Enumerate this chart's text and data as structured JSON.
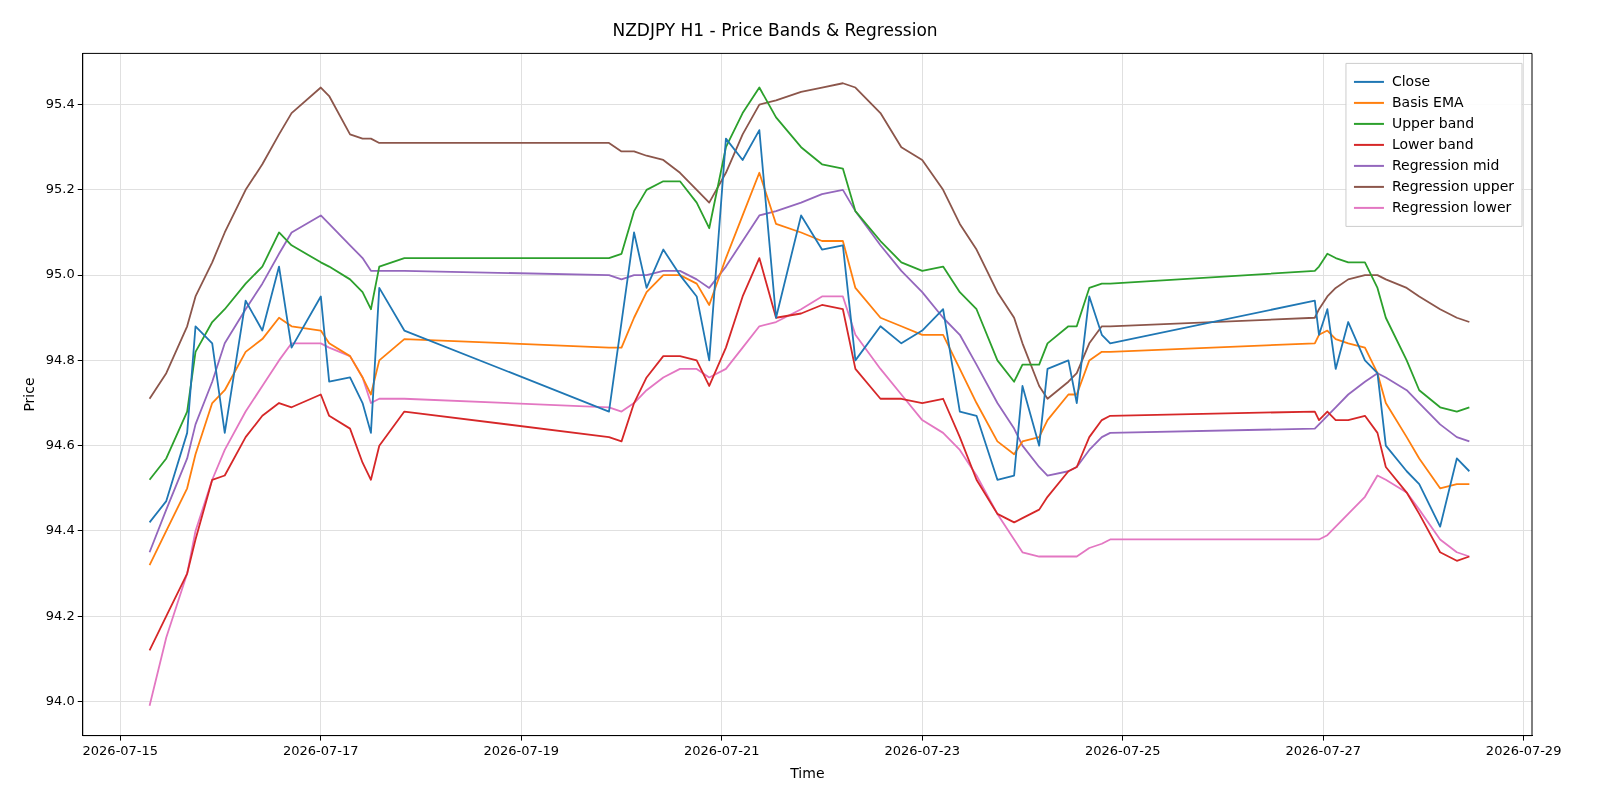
{
  "chart_data": {
    "type": "line",
    "title": "NZDJPY H1 - Price Bands & Regression",
    "xlabel": "Time",
    "ylabel": "Price",
    "x": [
      "2026-07-15T07:00",
      "2026-07-15T11:00",
      "2026-07-15T16:00",
      "2026-07-15T18:00",
      "2026-07-15T22:00",
      "2026-07-16T01:00",
      "2026-07-16T06:00",
      "2026-07-16T10:00",
      "2026-07-16T14:00",
      "2026-07-16T17:00",
      "2026-07-17T00:00",
      "2026-07-17T02:00",
      "2026-07-17T07:00",
      "2026-07-17T10:00",
      "2026-07-17T12:00",
      "2026-07-17T14:00",
      "2026-07-17T20:00",
      "2026-07-19T21:00",
      "2026-07-20T00:00",
      "2026-07-20T03:00",
      "2026-07-20T06:00",
      "2026-07-20T10:00",
      "2026-07-20T14:00",
      "2026-07-20T18:00",
      "2026-07-20T21:00",
      "2026-07-21T01:00",
      "2026-07-21T05:00",
      "2026-07-21T09:00",
      "2026-07-21T13:00",
      "2026-07-21T19:00",
      "2026-07-22T00:00",
      "2026-07-22T05:00",
      "2026-07-22T08:00",
      "2026-07-22T14:00",
      "2026-07-22T19:00",
      "2026-07-23T00:00",
      "2026-07-23T05:00",
      "2026-07-23T09:00",
      "2026-07-23T13:00",
      "2026-07-23T18:00",
      "2026-07-23T22:00",
      "2026-07-24T00:00",
      "2026-07-24T04:00",
      "2026-07-24T06:00",
      "2026-07-24T11:00",
      "2026-07-24T13:00",
      "2026-07-24T16:00",
      "2026-07-24T19:00",
      "2026-07-24T21:00",
      "2026-07-26T22:00",
      "2026-07-26T23:00",
      "2026-07-27T01:00",
      "2026-07-27T03:00",
      "2026-07-27T06:00",
      "2026-07-27T10:00",
      "2026-07-27T13:00",
      "2026-07-27T15:00",
      "2026-07-27T20:00",
      "2026-07-27T23:00",
      "2026-07-28T04:00",
      "2026-07-28T08:00",
      "2026-07-28T11:00"
    ],
    "series": [
      {
        "name": "Close",
        "color": "#1f77b4",
        "values": [
          94.42,
          94.47,
          94.63,
          94.88,
          94.84,
          94.63,
          94.94,
          94.87,
          95.02,
          94.83,
          94.95,
          94.75,
          94.76,
          94.7,
          94.63,
          94.97,
          94.87,
          94.68,
          94.89,
          95.1,
          94.97,
          95.06,
          95.0,
          94.95,
          94.8,
          95.32,
          95.27,
          95.34,
          94.9,
          95.14,
          95.06,
          95.07,
          94.8,
          94.88,
          94.84,
          94.87,
          94.92,
          94.68,
          94.67,
          94.52,
          94.53,
          94.74,
          94.6,
          94.78,
          94.8,
          94.7,
          94.95,
          94.86,
          94.84,
          94.94,
          94.86,
          94.92,
          94.78,
          94.89,
          94.8,
          94.77,
          94.6,
          94.54,
          94.51,
          94.41,
          94.57,
          94.54
        ]
      },
      {
        "name": "Basis EMA",
        "color": "#ff7f0e",
        "values": [
          94.32,
          94.4,
          94.5,
          94.58,
          94.7,
          94.73,
          94.82,
          94.85,
          94.9,
          94.88,
          94.87,
          94.84,
          94.81,
          94.76,
          94.72,
          94.8,
          94.85,
          94.83,
          94.83,
          94.9,
          94.96,
          95.0,
          95.0,
          94.98,
          94.93,
          95.04,
          95.14,
          95.24,
          95.12,
          95.1,
          95.08,
          95.08,
          94.97,
          94.9,
          94.88,
          94.86,
          94.86,
          94.78,
          94.7,
          94.61,
          94.58,
          94.61,
          94.62,
          94.66,
          94.72,
          94.72,
          94.8,
          94.82,
          94.82,
          94.84,
          94.86,
          94.87,
          94.85,
          94.84,
          94.83,
          94.77,
          94.7,
          94.62,
          94.57,
          94.5,
          94.51,
          94.51
        ]
      },
      {
        "name": "Upper band",
        "color": "#2ca02c",
        "values": [
          94.52,
          94.57,
          94.68,
          94.82,
          94.89,
          94.92,
          94.98,
          95.02,
          95.1,
          95.07,
          95.03,
          95.02,
          94.99,
          94.96,
          94.92,
          95.02,
          95.04,
          95.04,
          95.05,
          95.15,
          95.2,
          95.22,
          95.22,
          95.17,
          95.11,
          95.3,
          95.38,
          95.44,
          95.37,
          95.3,
          95.26,
          95.25,
          95.15,
          95.08,
          95.03,
          95.01,
          95.02,
          94.96,
          94.92,
          94.8,
          94.75,
          94.79,
          94.79,
          94.84,
          94.88,
          94.88,
          94.97,
          94.98,
          94.98,
          95.01,
          95.02,
          95.05,
          95.04,
          95.03,
          95.03,
          94.97,
          94.9,
          94.8,
          94.73,
          94.69,
          94.68,
          94.69
        ]
      },
      {
        "name": "Lower band",
        "color": "#d62728",
        "values": [
          94.12,
          94.2,
          94.3,
          94.38,
          94.52,
          94.53,
          94.62,
          94.67,
          94.7,
          94.69,
          94.72,
          94.67,
          94.64,
          94.56,
          94.52,
          94.6,
          94.68,
          94.62,
          94.61,
          94.7,
          94.76,
          94.81,
          94.81,
          94.8,
          94.74,
          94.83,
          94.95,
          95.04,
          94.9,
          94.91,
          94.93,
          94.92,
          94.78,
          94.71,
          94.71,
          94.7,
          94.71,
          94.62,
          94.52,
          94.44,
          94.42,
          94.43,
          94.45,
          94.48,
          94.54,
          94.55,
          94.62,
          94.66,
          94.67,
          94.68,
          94.66,
          94.68,
          94.66,
          94.66,
          94.67,
          94.63,
          94.55,
          94.49,
          94.44,
          94.35,
          94.33,
          94.34
        ]
      },
      {
        "name": "Regression mid",
        "color": "#9467bd",
        "values": [
          94.35,
          94.45,
          94.57,
          94.65,
          94.75,
          94.84,
          94.92,
          94.98,
          95.05,
          95.1,
          95.14,
          95.12,
          95.07,
          95.04,
          95.01,
          95.01,
          95.01,
          95.0,
          94.99,
          95.0,
          95.0,
          95.01,
          95.01,
          94.99,
          94.97,
          95.02,
          95.08,
          95.14,
          95.15,
          95.17,
          95.19,
          95.2,
          95.15,
          95.07,
          95.01,
          94.96,
          94.9,
          94.86,
          94.79,
          94.7,
          94.64,
          94.6,
          94.55,
          94.53,
          94.54,
          94.55,
          94.59,
          94.62,
          94.63,
          94.64,
          94.65,
          94.67,
          94.69,
          94.72,
          94.75,
          94.77,
          94.76,
          94.73,
          94.7,
          94.65,
          94.62,
          94.61
        ]
      },
      {
        "name": "Regression upper",
        "color": "#8c564b",
        "values": [
          94.71,
          94.77,
          94.88,
          94.95,
          95.03,
          95.1,
          95.2,
          95.26,
          95.33,
          95.38,
          95.44,
          95.42,
          95.33,
          95.32,
          95.32,
          95.31,
          95.31,
          95.31,
          95.29,
          95.29,
          95.28,
          95.27,
          95.24,
          95.2,
          95.17,
          95.24,
          95.33,
          95.4,
          95.41,
          95.43,
          95.44,
          95.45,
          95.44,
          95.38,
          95.3,
          95.27,
          95.2,
          95.12,
          95.06,
          94.96,
          94.9,
          94.84,
          94.74,
          94.71,
          94.75,
          94.77,
          94.84,
          94.88,
          94.88,
          94.9,
          94.92,
          94.95,
          94.97,
          94.99,
          95.0,
          95.0,
          94.99,
          94.97,
          94.95,
          94.92,
          94.9,
          94.89
        ]
      },
      {
        "name": "Regression lower",
        "color": "#e377c2",
        "values": [
          93.99,
          94.15,
          94.3,
          94.4,
          94.52,
          94.59,
          94.68,
          94.74,
          94.8,
          94.84,
          94.84,
          94.83,
          94.81,
          94.76,
          94.7,
          94.71,
          94.71,
          94.69,
          94.68,
          94.7,
          94.73,
          94.76,
          94.78,
          94.78,
          94.76,
          94.78,
          94.83,
          94.88,
          94.89,
          94.92,
          94.95,
          94.95,
          94.86,
          94.78,
          94.72,
          94.66,
          94.63,
          94.59,
          94.53,
          94.44,
          94.38,
          94.35,
          94.34,
          94.34,
          94.34,
          94.34,
          94.36,
          94.37,
          94.38,
          94.38,
          94.38,
          94.39,
          94.41,
          94.44,
          94.48,
          94.53,
          94.52,
          94.49,
          94.45,
          94.38,
          94.35,
          94.34
        ]
      }
    ],
    "xlim": [
      "2026-07-14T15:00",
      "2026-07-29T02:00"
    ],
    "xticks": [
      "2026-07-15",
      "2026-07-17",
      "2026-07-19",
      "2026-07-21",
      "2026-07-23",
      "2026-07-25",
      "2026-07-27",
      "2026-07-29"
    ],
    "ylim": [
      93.92,
      95.52
    ],
    "yticks": [
      {
        "value": 94,
        "label": "94.0"
      },
      94.2,
      94.4,
      94.6,
      94.8,
      {
        "value": 95,
        "label": "95.0"
      },
      95.2,
      95.4
    ],
    "grid": true,
    "legend": "top right",
    "marker": "none",
    "line_style": "solid"
  }
}
